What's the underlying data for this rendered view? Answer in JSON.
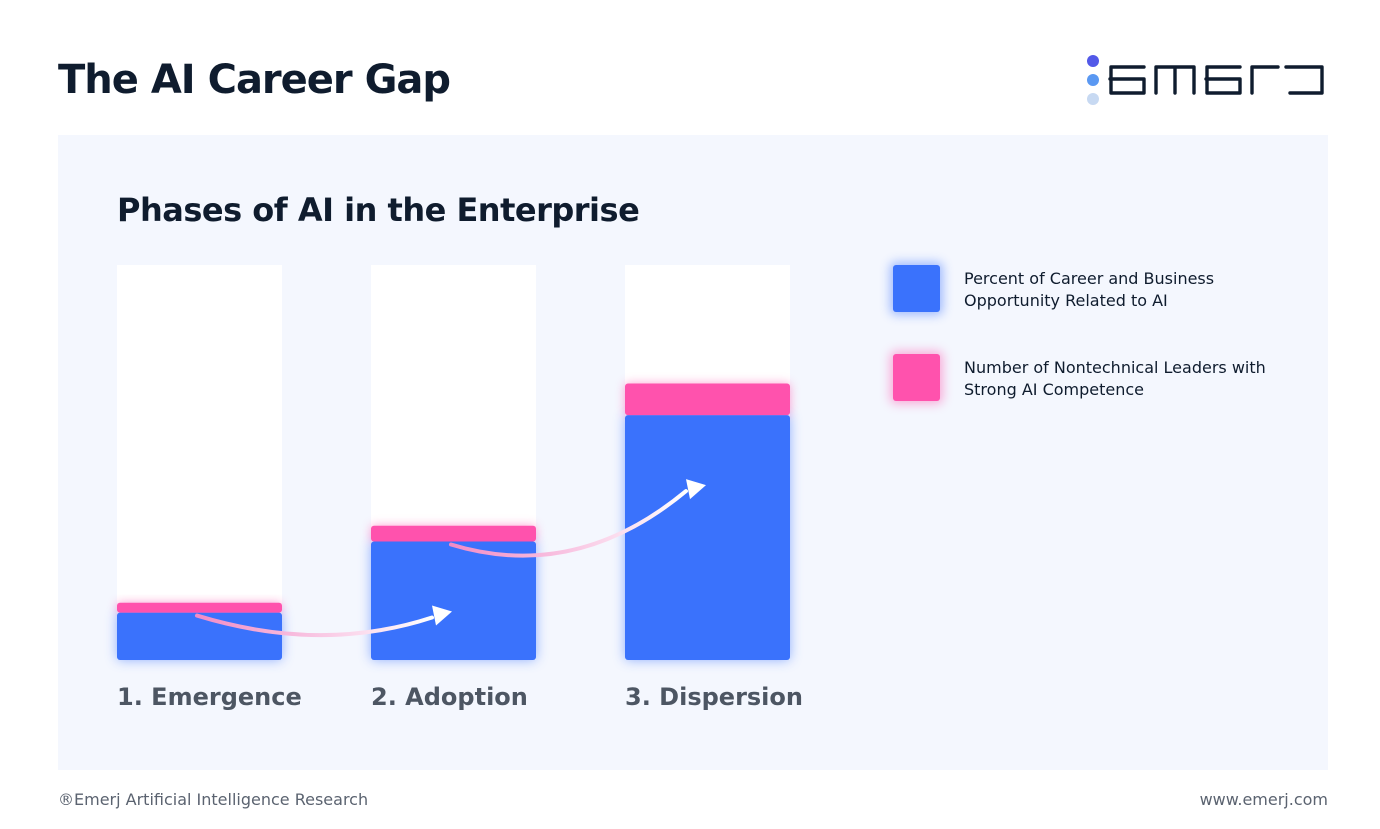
{
  "header": {
    "title": "The AI Career Gap",
    "logo_text": "emerj"
  },
  "legend": {
    "items": [
      {
        "label": "Percent of Career and Business Opportunity Related to AI",
        "color": "#3a72fc"
      },
      {
        "label": "Number of Nontechnical Leaders with Strong AI Competence",
        "color": "#ff52ad"
      }
    ]
  },
  "chart_data": {
    "type": "bar",
    "title": "Phases of AI in the Enterprise",
    "categories": [
      "1. Emergence",
      "2. Adoption",
      "3. Dispersion"
    ],
    "series": [
      {
        "name": "Percent of Career and Business Opportunity Related to AI",
        "values": [
          12,
          30,
          62
        ],
        "color": "#3a72fc"
      },
      {
        "name": "Number of Nontechnical Leaders with Strong AI Competence",
        "values": [
          2.5,
          4,
          8
        ],
        "color": "#ff52ad"
      }
    ],
    "stacked": true,
    "ylim": [
      0,
      100
    ],
    "grid": false,
    "legend_position": "right",
    "axis_tick_labels": false
  },
  "footer": {
    "copyright": "®Emerj Artificial Intelligence Research",
    "website": "www.emerj.com"
  }
}
